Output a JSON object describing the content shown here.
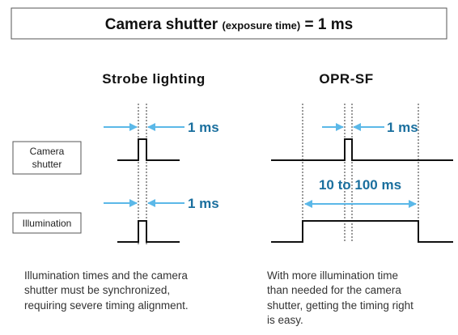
{
  "header": {
    "title": "Camera shutter",
    "subtitle": "(exposure time)",
    "value": "= 1 ms"
  },
  "left": {
    "title": "Strobe lighting",
    "shutter_width": "1 ms",
    "illumination_width": "1 ms",
    "caption": [
      "Illumination times and the camera",
      "shutter must be synchronized,",
      "requiring severe timing alignment."
    ]
  },
  "right": {
    "title": "OPR-SF",
    "shutter_width": "1 ms",
    "illumination_width": "10 to 100 ms",
    "caption": [
      "With more illumination time",
      "than needed for the camera",
      "shutter, getting the timing right",
      "is easy."
    ]
  },
  "labels": {
    "camera_shutter": [
      "Camera",
      "shutter"
    ],
    "illumination": "Illumination"
  }
}
